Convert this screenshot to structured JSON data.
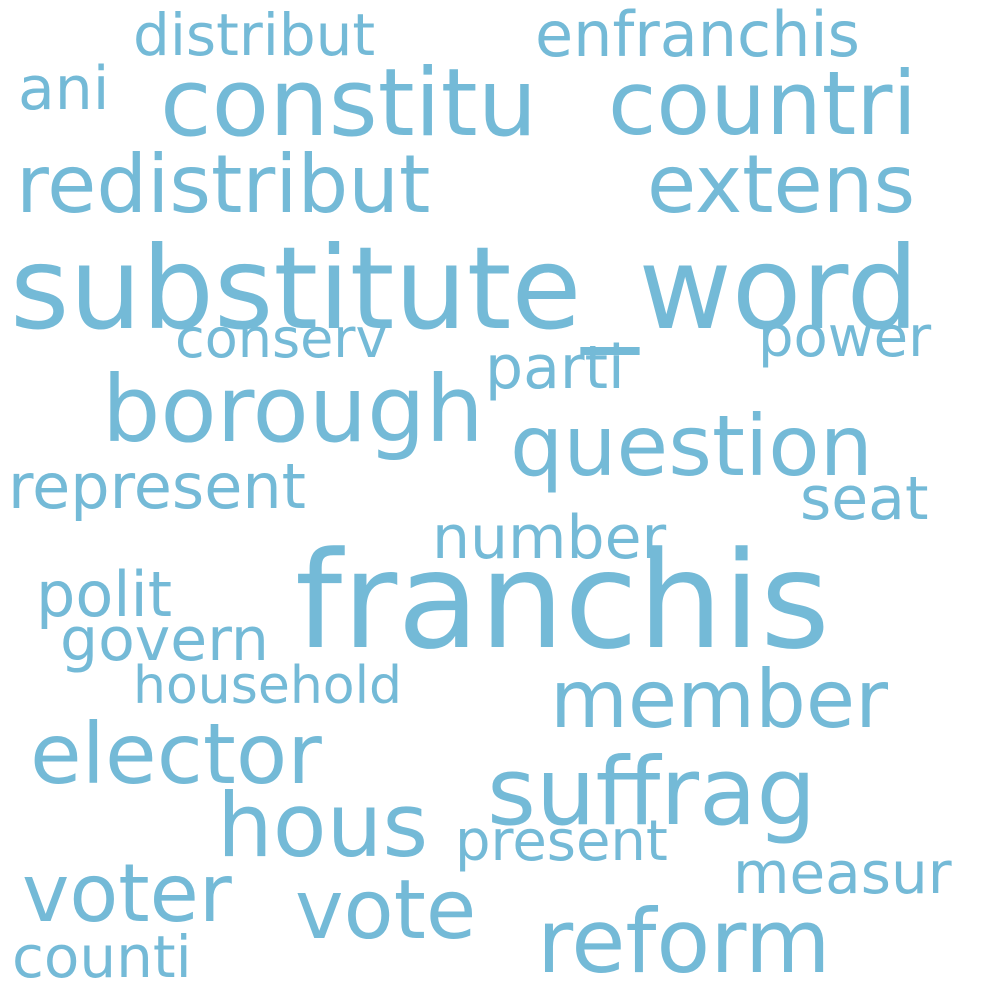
{
  "color": "#74bad7",
  "words": [
    "distribut",
    "enfranchis",
    "ani",
    "constitu",
    "countri",
    "redistribut",
    "extens",
    "substitute_word",
    "conserv",
    "power",
    "parti",
    "borough",
    "question",
    "represent",
    "seat",
    "number",
    "franchis",
    "polit",
    "govern",
    "household",
    "member",
    "elector",
    "suffrag",
    "hous",
    "present",
    "measur",
    "voter",
    "vote",
    "reform",
    "counti"
  ]
}
